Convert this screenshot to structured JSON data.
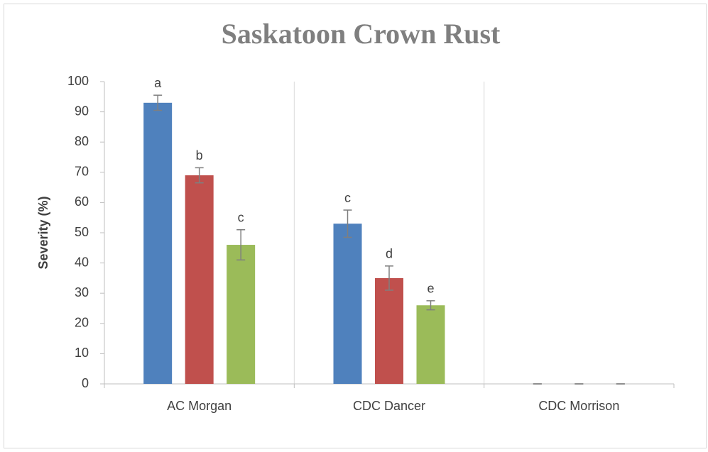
{
  "chart_data": {
    "type": "bar",
    "title": "Saskatoon Crown Rust",
    "y_label": "Severity (%)",
    "categories": [
      "AC Morgan",
      "CDC Dancer",
      "CDC Morrison"
    ],
    "series": [
      {
        "color": "#4f81bd",
        "values": [
          93,
          53,
          0
        ],
        "errors": [
          2.5,
          4.5,
          0
        ],
        "letters": [
          "a",
          "c",
          null
        ]
      },
      {
        "color": "#c0504d",
        "values": [
          69,
          35,
          0
        ],
        "errors": [
          2.5,
          4,
          0
        ],
        "letters": [
          "b",
          "d",
          null
        ]
      },
      {
        "color": "#9bbb59",
        "values": [
          46,
          26,
          0
        ],
        "errors": [
          5,
          1.5,
          0
        ],
        "letters": [
          "c",
          "e",
          null
        ]
      }
    ],
    "error_color": "#7f7f7f",
    "ylim": [
      0,
      100
    ],
    "yticks": [
      0,
      10,
      20,
      30,
      40,
      50,
      60,
      70,
      80,
      90,
      100
    ],
    "grid": "vertical"
  }
}
